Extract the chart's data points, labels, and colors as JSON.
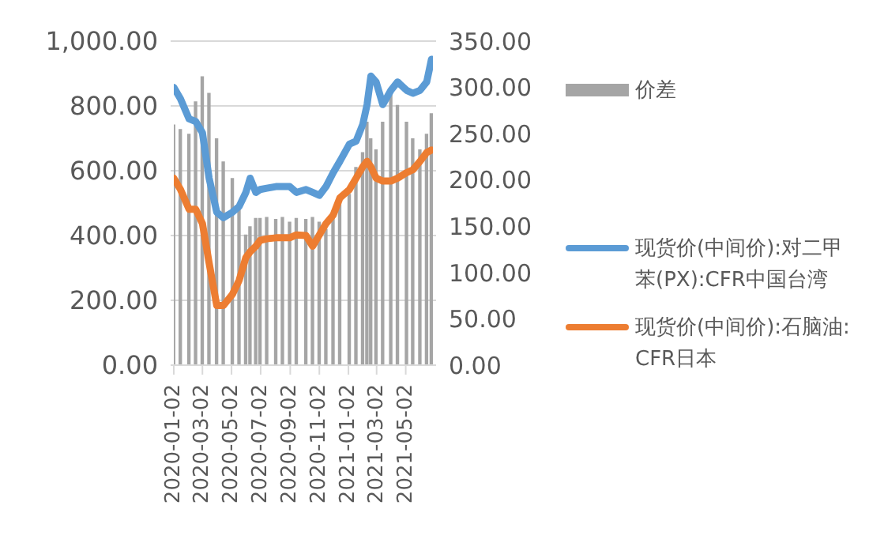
{
  "chart_data": {
    "type": "line",
    "x": [
      "2020-01-02",
      "2020-01-16",
      "2020-02-03",
      "2020-02-17",
      "2020-03-02",
      "2020-03-16",
      "2020-04-01",
      "2020-04-15",
      "2020-05-04",
      "2020-05-18",
      "2020-06-01",
      "2020-06-10",
      "2020-06-22",
      "2020-07-01",
      "2020-07-15",
      "2020-08-03",
      "2020-08-17",
      "2020-09-01",
      "2020-09-15",
      "2020-10-05",
      "2020-10-19",
      "2020-11-02",
      "2020-11-16",
      "2020-12-01",
      "2020-12-15",
      "2021-01-04",
      "2021-01-18",
      "2021-02-01",
      "2021-02-10",
      "2021-02-18",
      "2021-03-01",
      "2021-03-15",
      "2021-04-01",
      "2021-04-15",
      "2021-05-04",
      "2021-05-17",
      "2021-06-01",
      "2021-06-15",
      "2021-06-25"
    ],
    "series": [
      {
        "name": "价差",
        "type": "bar",
        "axis": "y2",
        "color": "#a5a5a5",
        "values": [
          260,
          255,
          250,
          285,
          312,
          294,
          245,
          220,
          202,
          171,
          141,
          150,
          159,
          159,
          160,
          158,
          160,
          155,
          159,
          158,
          160,
          155,
          147,
          159,
          177,
          185,
          214,
          230,
          263,
          245,
          233,
          263,
          294,
          281,
          263,
          245,
          233,
          250,
          272
        ]
      },
      {
        "name": "现货价(中间价):对二甲苯(PX):CFR中国台湾",
        "color": "#5b9bd5",
        "values": [
          857,
          822,
          760,
          752,
          717,
          577,
          472,
          455,
          472,
          490,
          533,
          577,
          533,
          542,
          546,
          551,
          551,
          551,
          533,
          542,
          533,
          524,
          551,
          594,
          629,
          682,
          691,
          743,
          804,
          892,
          874,
          804,
          848,
          874,
          848,
          839,
          848,
          874,
          944
        ]
      },
      {
        "name": "现货价(中间价):石脑油:CFR日本",
        "color": "#ed7d31",
        "values": [
          577,
          542,
          481,
          481,
          437,
          315,
          184,
          184,
          219,
          262,
          332,
          350,
          367,
          385,
          390,
          393,
          393,
          393,
          402,
          400,
          367,
          402,
          437,
          463,
          516,
          542,
          577,
          612,
          629,
          612,
          577,
          568,
          568,
          577,
          594,
          603,
          629,
          656,
          664
        ]
      }
    ],
    "xlim": [
      "2020-01-02",
      "2021-06-28"
    ],
    "xticks": [
      "2020-01-02",
      "2020-03-02",
      "2020-05-02",
      "2020-07-02",
      "2020-09-02",
      "2020-11-02",
      "2021-01-02",
      "2021-03-02",
      "2021-05-02"
    ],
    "ylim": [
      0,
      1000
    ],
    "yticks": [
      {
        "value": 0,
        "label": "0.00"
      },
      {
        "value": 200,
        "label": "200.00"
      },
      {
        "value": 400,
        "label": "400.00"
      },
      {
        "value": 600,
        "label": "600.00"
      },
      {
        "value": 800,
        "label": "800.00"
      },
      {
        "value": 1000,
        "label": "1,000.00"
      }
    ],
    "y2lim": [
      0,
      350
    ],
    "y2ticks": [
      {
        "value": 0,
        "label": "0.00"
      },
      {
        "value": 50,
        "label": "50.00"
      },
      {
        "value": 100,
        "label": "100.00"
      },
      {
        "value": 150,
        "label": "150.00"
      },
      {
        "value": 200,
        "label": "200.00"
      },
      {
        "value": 250,
        "label": "250.00"
      },
      {
        "value": 300,
        "label": "300.00"
      },
      {
        "value": 350,
        "label": "350.00"
      }
    ],
    "grid": "y",
    "legend": "right",
    "marker": "none",
    "line_style": "solid"
  }
}
